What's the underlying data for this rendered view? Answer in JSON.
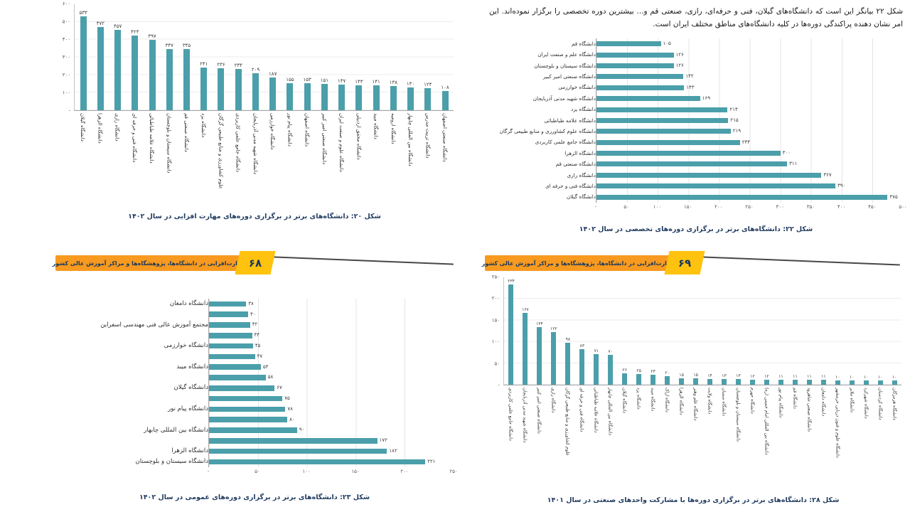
{
  "document": {
    "intro_paragraph": "شکل ۲۲ بیانگر این است که دانشگاه‌های گیلان، فنی و حرفه‌ای، رازی، صنعتی قم و... بیشترین دوره تخصصی را برگزار نموده‌اند. این امر نشان دهنده پراکندگی دوره‌ها در کلیه دانشگاه‌های مناطق مختلف ایران است."
  },
  "banners": [
    {
      "page_number": "۶۸",
      "title": "مهارت‌افزایی در دانشگاه‌ها، پژوهشگاه‌ها و مراکز آموزش عالی کشور"
    },
    {
      "page_number": "۶۹",
      "title": "مهارت‌افزایی در دانشگاه‌ها، پژوهشگاه‌ها و مراکز آموزش عالی کشور"
    }
  ],
  "colors": {
    "bar": "#4b9faa",
    "banner_orange": "#f79a1f",
    "banner_yellow": "#ffc20e",
    "caption_text": "#1f3a5f"
  },
  "chart_data": [
    {
      "figure_label": "شکل ۲۰",
      "caption": "شکل ۲۰: دانشگاه‌های برتر در برگزاری دوره‌های مهارت افزایی در سال ۱۴۰۲",
      "type": "bar",
      "orientation": "vertical",
      "grid": true,
      "axis_max": 600,
      "tick_step": 100,
      "ticks": [
        "-",
        "۱۰۰",
        "۲۰۰",
        "۳۰۰",
        "۴۰۰",
        "۵۰۰",
        "۶۰۰"
      ],
      "categories": [
        "دانشگاه گیلان",
        "دانشگاه الزهرا",
        "دانشگاه رازی",
        "دانشگاه فنی و حرفه ای",
        "دانشگاه علامه طباطبائی",
        "دانشگاه سیستان و بلوچستان",
        "دانشگاه صنعتی قم",
        "دانشگاه یزد",
        "علوم کشاورزی و منابع طبیعی گرگان",
        "دانشگاه جامع علمی کاربردی",
        "دانشگاه شهید مدنی آذربایجان",
        "دانشگاه خوارزمی",
        "دانشگاه پیام نور",
        "دانشگاه اصفهان",
        "دانشگاه صنعتی امیر کبیر",
        "دانشگاه علوم و صنعت ایران",
        "دانشگاه محقق اردبیلی",
        "دانشگاه میبد",
        "دانشگاه ارومیه",
        "دانشگاه بین المللی چابهار",
        "دانشگاه تربیت مدرس",
        "دانشگاه صنعتی اصفهان"
      ],
      "values": [
        533,
        472,
        457,
        424,
        397,
        347,
        345,
        241,
        236,
        234,
        209,
        187,
        155,
        153,
        151,
        147,
        143,
        141,
        138,
        130,
        124,
        108
      ]
    },
    {
      "figure_label": "شکل ۲۲",
      "caption": "شکل ۲۲: دانشگاه‌های برتر در برگزاری دوره‌های تخصصی در سال ۱۴۰۲",
      "type": "bar",
      "orientation": "horizontal",
      "grid": true,
      "axis_max": 500,
      "tick_step": 50,
      "ticks": [
        "-",
        "۵۰",
        "۱۰۰",
        "۱۵۰",
        "۲۰۰",
        "۲۵۰",
        "۳۰۰",
        "۳۵۰",
        "۴۰۰",
        "۴۵۰",
        "۵۰۰"
      ],
      "categories": [
        "دانشگاه قم",
        "دانشگاه علم و صنعت ایران",
        "دانشگاه سیستان و بلوچستان",
        "دانشگاه صنعتی امیر کبیر",
        "دانشگاه خوارزمی",
        "دانشگاه شهید مدنی آذربایجان",
        "دانشگاه یزد",
        "دانشگاه علامه طباطبائی",
        "دانشگاه علوم کشاورزی و منابع طبیعی گرگان",
        "دانشگاه جامع علمی کاربردی",
        "دانشگاه الزهرا",
        "دانشگاه صنعتی قم",
        "دانشگاه رازی",
        "دانشگاه فنی و حرفه ای",
        "دانشگاه گیلان"
      ],
      "values": [
        105,
        126,
        126,
        142,
        143,
        169,
        214,
        215,
        219,
        234,
        300,
        311,
        367,
        390,
        475
      ]
    },
    {
      "figure_label": "شکل ۲۳",
      "caption": "شکل ۲۳: دانشگاه‌های برتر در برگزاری دوره‌های عمومی در سال ۱۴۰۲",
      "type": "bar",
      "orientation": "horizontal",
      "grid": true,
      "axis_max": 250,
      "tick_step": 50,
      "ticks": [
        "-",
        "۵۰",
        "۱۰۰",
        "۱۵۰",
        "۲۰۰",
        "۲۵۰"
      ],
      "categories": [
        "دانشگاه دامغان",
        "",
        "مجتمع آموزش عالی فنی مهندسی اسفراین",
        "",
        "دانشگاه خوارزمی",
        "",
        "دانشگاه میبد",
        "",
        "دانشگاه گیلان",
        "",
        "دانشگاه پیام نور",
        "",
        "دانشگاه بین المللی چابهار",
        "",
        "دانشگاه الزهرا",
        "دانشگاه سیستان و بلوچستان"
      ],
      "values": [
        38,
        40,
        42,
        44,
        45,
        47,
        53,
        58,
        67,
        75,
        78,
        80,
        90,
        172,
        182,
        221
      ]
    },
    {
      "figure_label": "شکل ۲۸",
      "caption": "شکل ۲۸: دانشگاه‌های برتر در برگزاری دوره‌ها با مشارکت واحدهای صنعتی در سال ۱۴۰۱",
      "type": "bar",
      "orientation": "vertical",
      "grid": true,
      "axis_max": 250,
      "tick_step": 50,
      "ticks": [
        "-",
        "۵۰",
        "۱۰۰",
        "۱۵۰",
        "۲۰۰",
        "۲۵۰"
      ],
      "categories": [
        "دانشگاه جامع علمی کاربردی",
        "دانشگاه شهید مدنی آذربایجان",
        "دانشگاه صنعتی امیر کبیر",
        "دانشگاه رازی",
        "علوم کشاورزی و منابع طبیعی گرگان",
        "دانشگاه فنی و حرفه ای",
        "دانشگاه علامه طباطبائی",
        "دانشگاه بین المللی چابهار",
        "دانشگاه گیلان",
        "دانشگاه یزد",
        "دانشگاه میبد",
        "دانشگاه اراک",
        "دانشگاه الزهرا",
        "دانشگاه علم وهنر",
        "دانشگاه ولایت",
        "دانشگاه سمنان",
        "دانشگاه سیستان و بلوچستان",
        "دانشگاه جهرم",
        "دانشگاه بین المللی امام خمینی (ره)",
        "دانشگاه پیام نور",
        "دانشگاه قم",
        "دانشگاه صنعتی شاهرود",
        "دانشگاه دامغان",
        "دانشگاه علوم و فنون دریایی خرمشهر",
        "دانشگاه ملایر",
        "دانشگاه شهرکرد",
        "دانشگاه کردستان",
        "دانشگاه هرمزگان"
      ],
      "values": [
        234,
        167,
        134,
        122,
        97,
        83,
        71,
        70,
        26,
        25,
        23,
        20,
        15,
        15,
        14,
        13,
        13,
        12,
        12,
        11,
        11,
        11,
        11,
        10,
        10,
        10,
        10,
        10
      ]
    }
  ]
}
